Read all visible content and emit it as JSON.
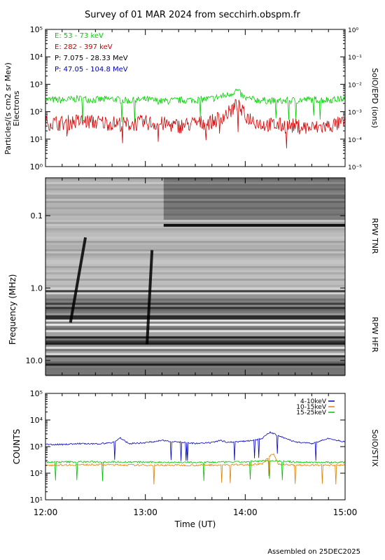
{
  "title": "Survey of 01 MAR 2024 from secchirh.obspm.fr",
  "footer": "Assembled on 25DEC2025",
  "colors": {
    "electrons_low": "#00d000",
    "electrons_high": "#d00000",
    "protons_low": "#000000",
    "protons_high": "#0000c0",
    "stix_low": "#0000c0",
    "stix_mid": "#e08000",
    "stix_high": "#00c000"
  },
  "chart_data": [
    {
      "type": "line",
      "panel": "epd",
      "title": "",
      "ylabel_lines": [
        "Particles/(s cm2 sr Mev)",
        "Electrons"
      ],
      "right_label": "SolO/EPD (ions)",
      "yscale": "log",
      "ylim": [
        1,
        100000
      ],
      "y_ticks": [
        "10⁰",
        "10¹",
        "10²",
        "10³",
        "10⁴",
        "10⁵"
      ],
      "y2lim": [
        1e-05,
        1
      ],
      "y2_ticks": [
        "10⁻⁵",
        "10⁻⁴",
        "10⁻³",
        "10⁻²",
        "10⁻¹",
        "10⁰"
      ],
      "xlim": [
        "12:00",
        "15:00"
      ],
      "legend_position": "top-left",
      "series": [
        {
          "name": "E: 53 - 73 keV",
          "x": [
            "12:00",
            "12:10",
            "12:20",
            "12:30",
            "12:40",
            "12:50",
            "13:00",
            "13:10",
            "13:20",
            "13:30",
            "13:40",
            "13:50",
            "13:55",
            "14:00",
            "14:10",
            "14:20",
            "14:30",
            "14:40",
            "14:50",
            "15:00"
          ],
          "values": [
            280,
            260,
            300,
            270,
            290,
            250,
            280,
            240,
            260,
            270,
            300,
            420,
            600,
            300,
            260,
            240,
            260,
            280,
            270,
            300
          ]
        },
        {
          "name": "E: 282 - 397 keV",
          "x": [
            "12:00",
            "12:10",
            "12:20",
            "12:30",
            "12:40",
            "12:50",
            "13:00",
            "13:10",
            "13:20",
            "13:30",
            "13:40",
            "13:50",
            "13:55",
            "14:00",
            "14:10",
            "14:20",
            "14:30",
            "14:40",
            "14:50",
            "15:00"
          ],
          "values": [
            40,
            38,
            45,
            42,
            38,
            35,
            40,
            36,
            30,
            38,
            42,
            90,
            180,
            70,
            35,
            32,
            30,
            25,
            30,
            40
          ]
        },
        {
          "name": "P: 7.075 - 28.33 MeV",
          "x": [],
          "values": []
        },
        {
          "name": "P: 47.05 - 104.8 MeV",
          "x": [],
          "values": []
        }
      ]
    },
    {
      "type": "heatmap",
      "panel": "rpw",
      "ylabel": "Frequency (MHz)",
      "yscale": "log",
      "ylim": [
        0.03,
        16
      ],
      "y_ticks": [
        "0.1",
        "1.0",
        "10.0"
      ],
      "xlim": [
        "12:00",
        "15:00"
      ],
      "sub_panels": [
        "RPW TNR",
        "RPW HFR"
      ],
      "bursts": [
        {
          "start": "12:15",
          "end": "12:24",
          "f_high": 0.2,
          "f_low": 3.0
        },
        {
          "start": "13:01",
          "end": "13:04",
          "f_high": 0.3,
          "f_low": 6.0
        }
      ]
    },
    {
      "type": "line",
      "panel": "stix",
      "ylabel": "COUNTS",
      "right_label": "SolO/STIX",
      "xlabel": "Time (UT)",
      "yscale": "log",
      "ylim": [
        10,
        100000
      ],
      "y_ticks": [
        "10¹",
        "10²",
        "10³",
        "10⁴",
        "10⁵"
      ],
      "x_ticks": [
        "12:00",
        "13:00",
        "14:00",
        "15:00"
      ],
      "legend_position": "top-right",
      "series": [
        {
          "name": "4-10keV",
          "x": [
            "12:00",
            "12:10",
            "12:20",
            "12:30",
            "12:40",
            "12:45",
            "12:50",
            "13:00",
            "13:10",
            "13:20",
            "13:30",
            "13:40",
            "13:45",
            "13:50",
            "14:00",
            "14:10",
            "14:15",
            "14:20",
            "14:30",
            "14:40",
            "14:50",
            "15:00"
          ],
          "values": [
            1200,
            1200,
            1300,
            1250,
            1400,
            2100,
            1300,
            1400,
            1700,
            1500,
            1300,
            1400,
            1700,
            1450,
            1600,
            2000,
            3500,
            2500,
            1500,
            1300,
            2000,
            1500
          ]
        },
        {
          "name": "10-15keV",
          "x": [
            "12:00",
            "12:30",
            "13:00",
            "13:30",
            "14:00",
            "14:10",
            "14:15",
            "14:17",
            "14:20",
            "14:30",
            "15:00"
          ],
          "values": [
            200,
            210,
            200,
            200,
            210,
            220,
            450,
            520,
            220,
            200,
            200
          ]
        },
        {
          "name": "15-25keV",
          "x": [
            "12:00",
            "12:30",
            "13:00",
            "13:30",
            "14:00",
            "14:15",
            "14:30",
            "15:00"
          ],
          "values": [
            260,
            270,
            260,
            255,
            265,
            300,
            260,
            255
          ]
        }
      ]
    }
  ]
}
